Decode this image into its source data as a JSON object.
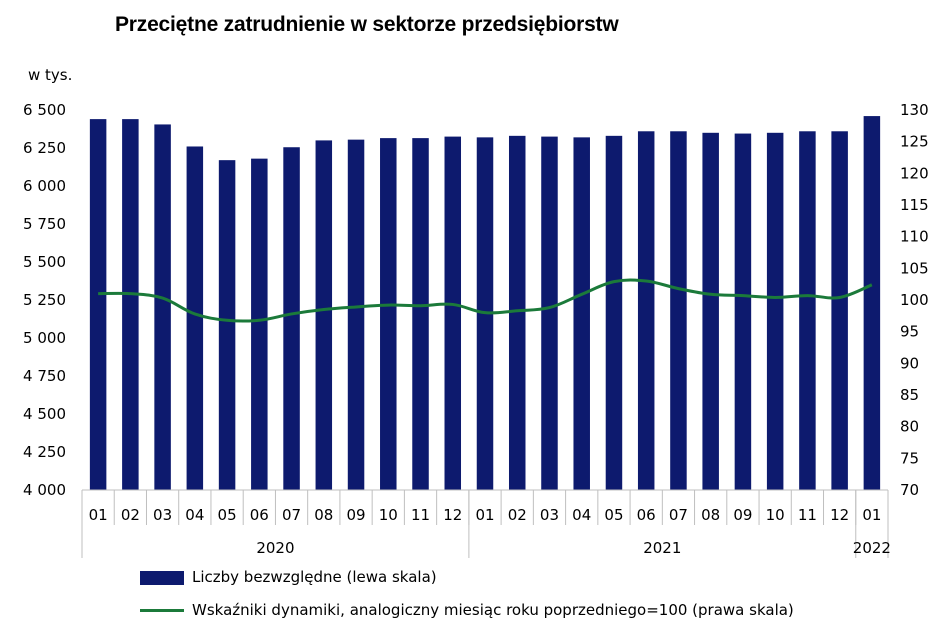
{
  "title": "Przeciętne zatrudnienie w sektorze przedsiębiorstw",
  "unit_label": "w tys.",
  "colors": {
    "bars": "#0d1a6e",
    "line": "#1b7a3a",
    "axis": "#bfbfbf"
  },
  "legend": {
    "bars": "Liczby bezwzględne (lewa skala)",
    "line": "Wskaźniki dynamiki, analogiczny miesiąc roku poprzedniego=100 (prawa skala)"
  },
  "chart_data": {
    "type": "bar",
    "categories": [
      "01",
      "02",
      "03",
      "04",
      "05",
      "06",
      "07",
      "08",
      "09",
      "10",
      "11",
      "12",
      "01",
      "02",
      "03",
      "04",
      "05",
      "06",
      "07",
      "08",
      "09",
      "10",
      "11",
      "12",
      "01"
    ],
    "year_groups": [
      {
        "label": "2020",
        "count": 12
      },
      {
        "label": "2021",
        "count": 12
      },
      {
        "label": "2022",
        "count": 1
      }
    ],
    "left_axis": {
      "min": 4000,
      "max": 6500,
      "ticks": [
        "4 000",
        "4 250",
        "4 500",
        "4 750",
        "5 000",
        "5 250",
        "5 500",
        "5 750",
        "6 000",
        "6 250",
        "6 500"
      ]
    },
    "right_axis": {
      "min": 70,
      "max": 130,
      "ticks": [
        "70",
        "75",
        "80",
        "85",
        "90",
        "95",
        "100",
        "105",
        "110",
        "115",
        "120",
        "125",
        "130"
      ]
    },
    "series": [
      {
        "name": "Liczby bezwzględne (lewa skala)",
        "type": "bar",
        "axis": "left",
        "values": [
          6440,
          6440,
          6405,
          6260,
          6170,
          6180,
          6255,
          6300,
          6305,
          6315,
          6315,
          6325,
          6320,
          6330,
          6325,
          6320,
          6330,
          6360,
          6360,
          6350,
          6345,
          6350,
          6360,
          6360,
          6460
        ]
      },
      {
        "name": "Wskaźniki dynamiki, analogiczny miesiąc roku poprzedniego=100 (prawa skala)",
        "type": "line",
        "axis": "right",
        "values": [
          101.0,
          101.0,
          100.3,
          97.8,
          96.8,
          96.8,
          97.8,
          98.5,
          98.9,
          99.2,
          99.1,
          99.3,
          98.0,
          98.3,
          98.8,
          100.9,
          102.9,
          103.0,
          101.8,
          100.9,
          100.7,
          100.4,
          100.7,
          100.4,
          102.4
        ]
      }
    ]
  }
}
